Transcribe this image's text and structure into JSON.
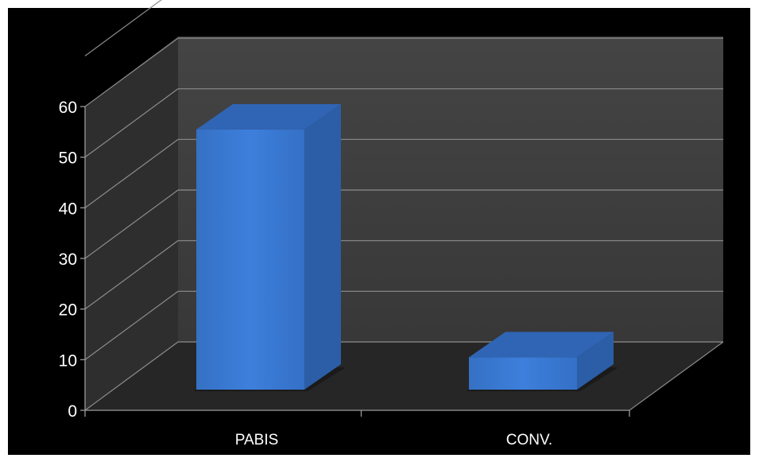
{
  "chart_data": {
    "type": "bar",
    "three_d": true,
    "background_color": "#000000",
    "wall_color": "#3d3d3d",
    "floor_color": "#262626",
    "gridline_color": "#8c8c8c",
    "bar_color": "#3a78d0",
    "label_color": "#ffffff",
    "categories": [
      "PABIS",
      "CONV."
    ],
    "values": [
      55,
      10
    ],
    "ylim": [
      0,
      60
    ],
    "yticks": [
      "0",
      "10",
      "20",
      "30",
      "40",
      "50",
      "60"
    ],
    "title": "",
    "xlabel": "",
    "ylabel": "",
    "grid": true,
    "legend": "none"
  }
}
